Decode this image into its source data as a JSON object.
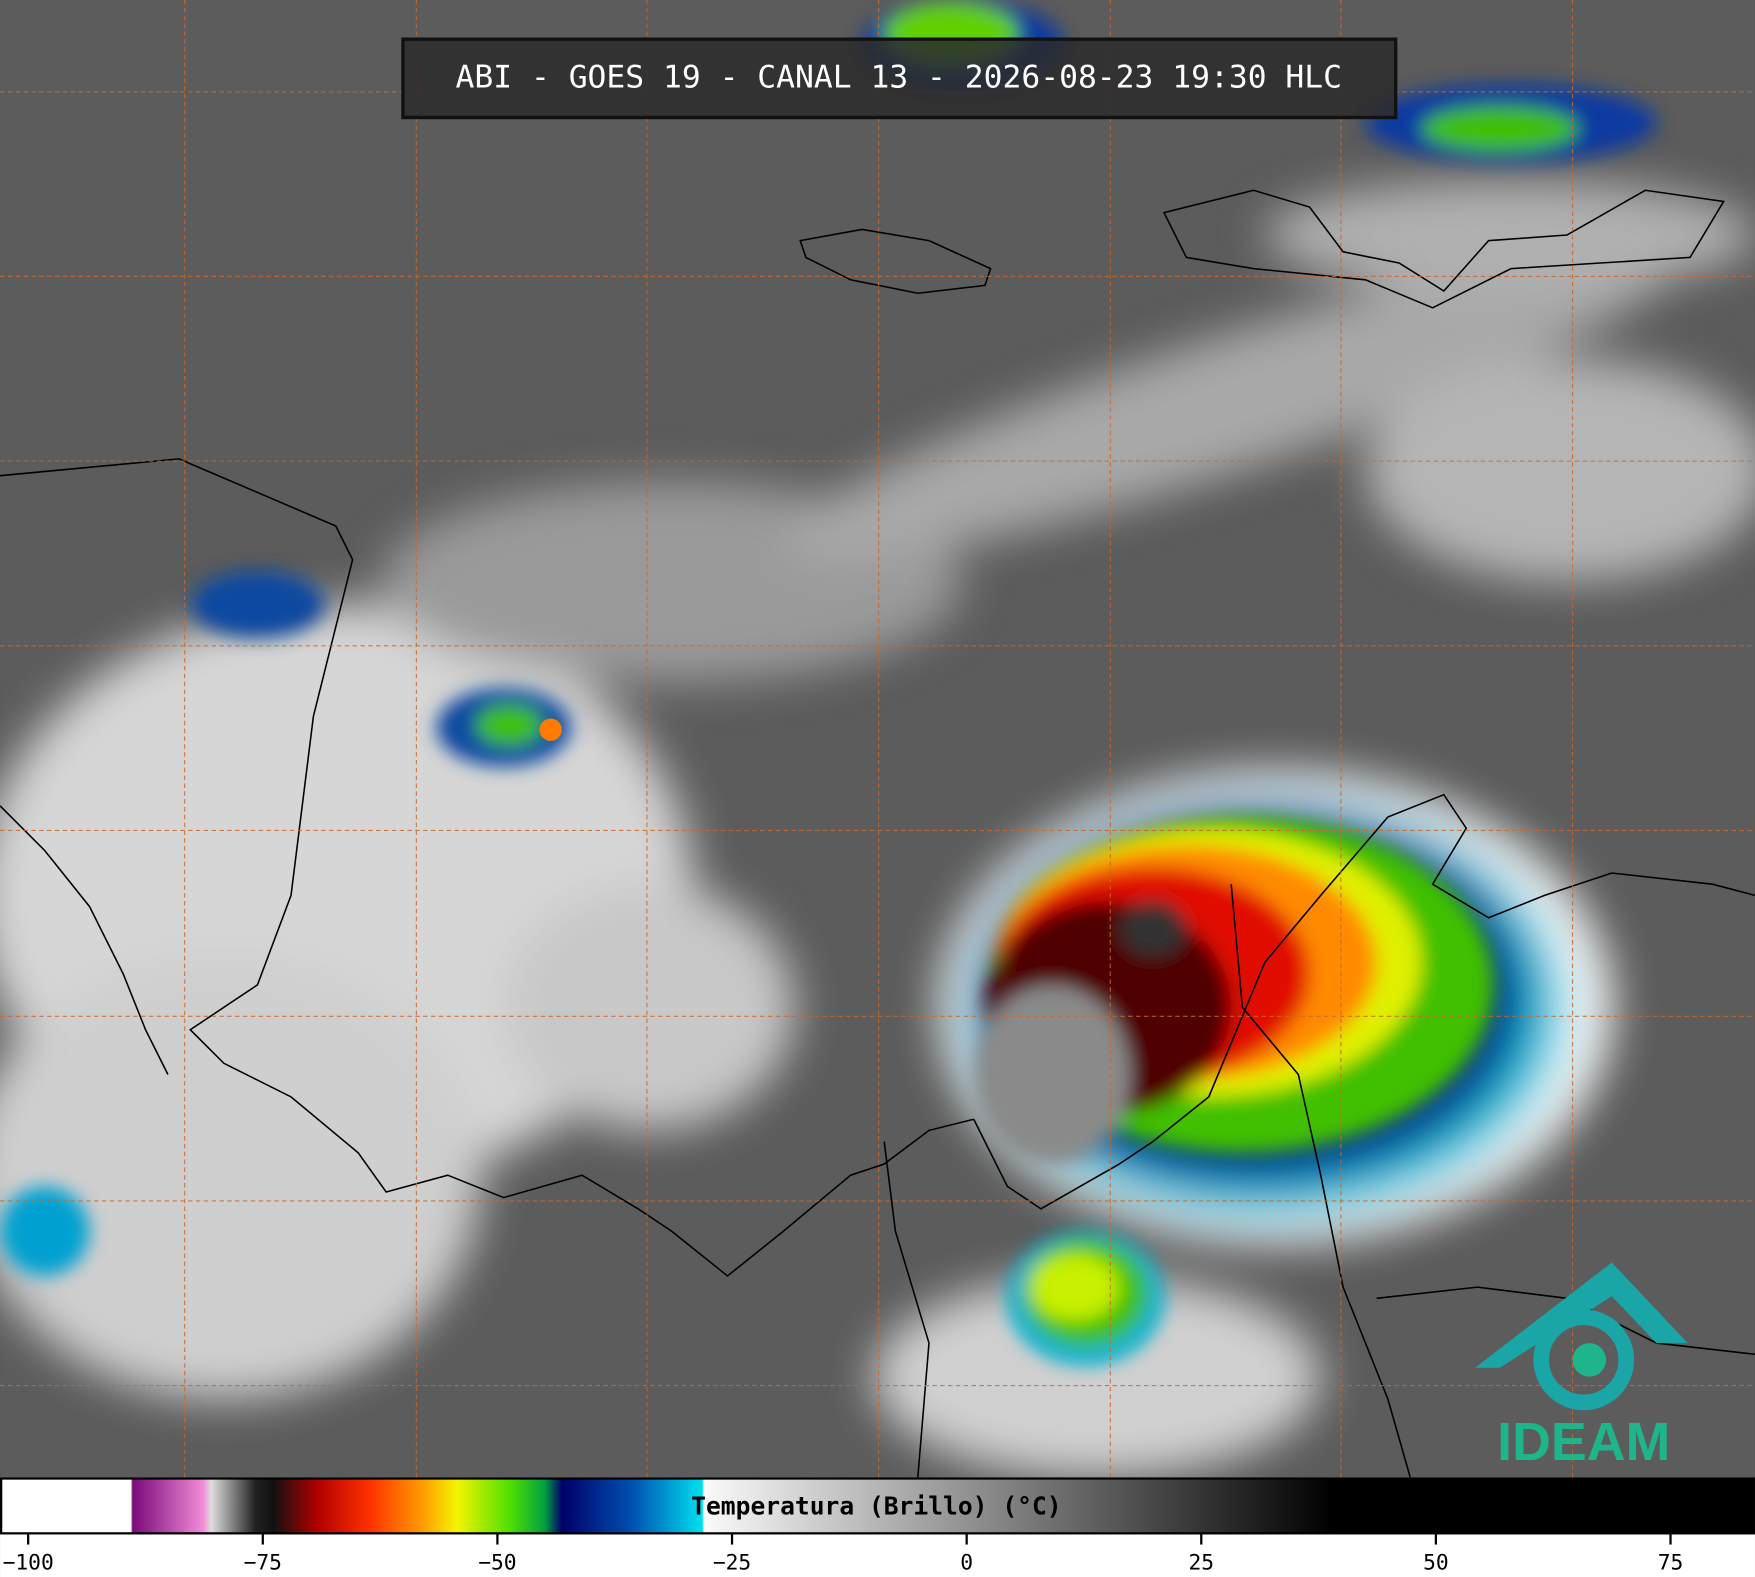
{
  "header": {
    "title": "ABI - GOES 19 - CANAL 13 - 2026-08-23 19:30 HLC"
  },
  "logo": {
    "text": "IDEAM"
  },
  "colorbar": {
    "label": "Temperatura (Brillo) (°C)",
    "lim": [
      -103,
      84
    ],
    "ticks": [
      {
        "value": -100,
        "label": "−100"
      },
      {
        "value": -75,
        "label": "−75"
      },
      {
        "value": -50,
        "label": "−50"
      },
      {
        "value": -25,
        "label": "−25"
      },
      0,
      25,
      50,
      75
    ]
  }
}
